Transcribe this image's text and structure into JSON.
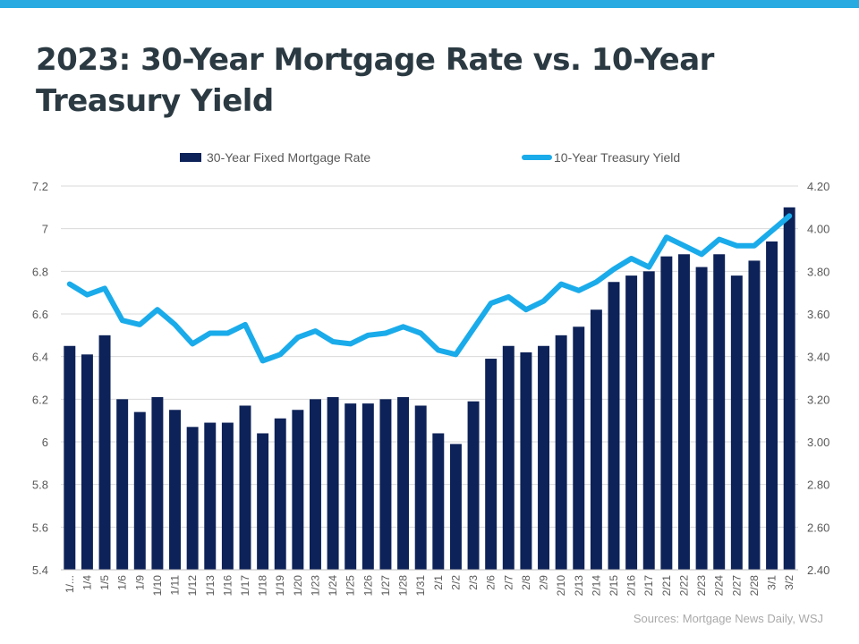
{
  "header": {
    "title": "2023: 30-Year Mortgage Rate vs. 10-Year Treasury Yield",
    "accent_color": "#29abe2"
  },
  "footer": {
    "source": "Sources: Mortgage News Daily, WSJ"
  },
  "chart_data": {
    "type": "bar",
    "title": "2023: 30-Year Mortgage Rate vs. 10-Year Treasury Yield",
    "xlabel": "",
    "ylabel": "",
    "legend_position": "top-center",
    "grid": true,
    "categories": [
      "1/...",
      "1/4",
      "1/5",
      "1/6",
      "1/9",
      "1/10",
      "1/11",
      "1/12",
      "1/13",
      "1/16",
      "1/17",
      "1/18",
      "1/19",
      "1/20",
      "1/23",
      "1/24",
      "1/25",
      "1/26",
      "1/27",
      "1/28",
      "1/31",
      "2/1",
      "2/2",
      "2/3",
      "2/6",
      "2/7",
      "2/8",
      "2/9",
      "2/10",
      "2/13",
      "2/14",
      "2/15",
      "2/16",
      "2/17",
      "2/21",
      "2/22",
      "2/23",
      "2/24",
      "2/27",
      "2/28",
      "3/1",
      "3/2"
    ],
    "series": [
      {
        "name": "30-Year Fixed Mortgage Rate",
        "type": "bar",
        "axis": "left",
        "color": "#0d2258",
        "values": [
          6.45,
          6.41,
          6.5,
          6.2,
          6.14,
          6.21,
          6.15,
          6.07,
          6.09,
          6.09,
          6.17,
          6.04,
          6.11,
          6.15,
          6.2,
          6.21,
          6.18,
          6.18,
          6.2,
          6.21,
          6.17,
          6.04,
          5.99,
          6.19,
          6.39,
          6.45,
          6.42,
          6.45,
          6.5,
          6.54,
          6.62,
          6.75,
          6.78,
          6.8,
          6.87,
          6.88,
          6.82,
          6.88,
          6.78,
          6.85,
          6.94,
          7.1
        ]
      },
      {
        "name": "10-Year Treasury Yield",
        "type": "line",
        "axis": "right",
        "color": "#1aabea",
        "values": [
          3.74,
          3.69,
          3.72,
          3.57,
          3.55,
          3.62,
          3.55,
          3.46,
          3.51,
          3.51,
          3.55,
          3.38,
          3.41,
          3.49,
          3.52,
          3.47,
          3.46,
          3.5,
          3.51,
          3.54,
          3.51,
          3.43,
          3.41,
          3.53,
          3.65,
          3.68,
          3.62,
          3.66,
          3.74,
          3.71,
          3.75,
          3.81,
          3.86,
          3.82,
          3.96,
          3.92,
          3.88,
          3.95,
          3.92,
          3.92,
          3.99,
          4.06
        ]
      }
    ],
    "y_left": {
      "min": 5.4,
      "max": 7.2,
      "step": 0.2,
      "tick_labels": [
        "5.4",
        "5.6",
        "5.8",
        "6",
        "6.2",
        "6.4",
        "6.6",
        "6.8",
        "7",
        "7.2"
      ]
    },
    "y_right": {
      "min": 2.4,
      "max": 4.2,
      "step": 0.2,
      "tick_labels": [
        "2.40",
        "2.60",
        "2.80",
        "3.00",
        "3.20",
        "3.40",
        "3.60",
        "3.80",
        "4.00",
        "4.20"
      ]
    }
  }
}
